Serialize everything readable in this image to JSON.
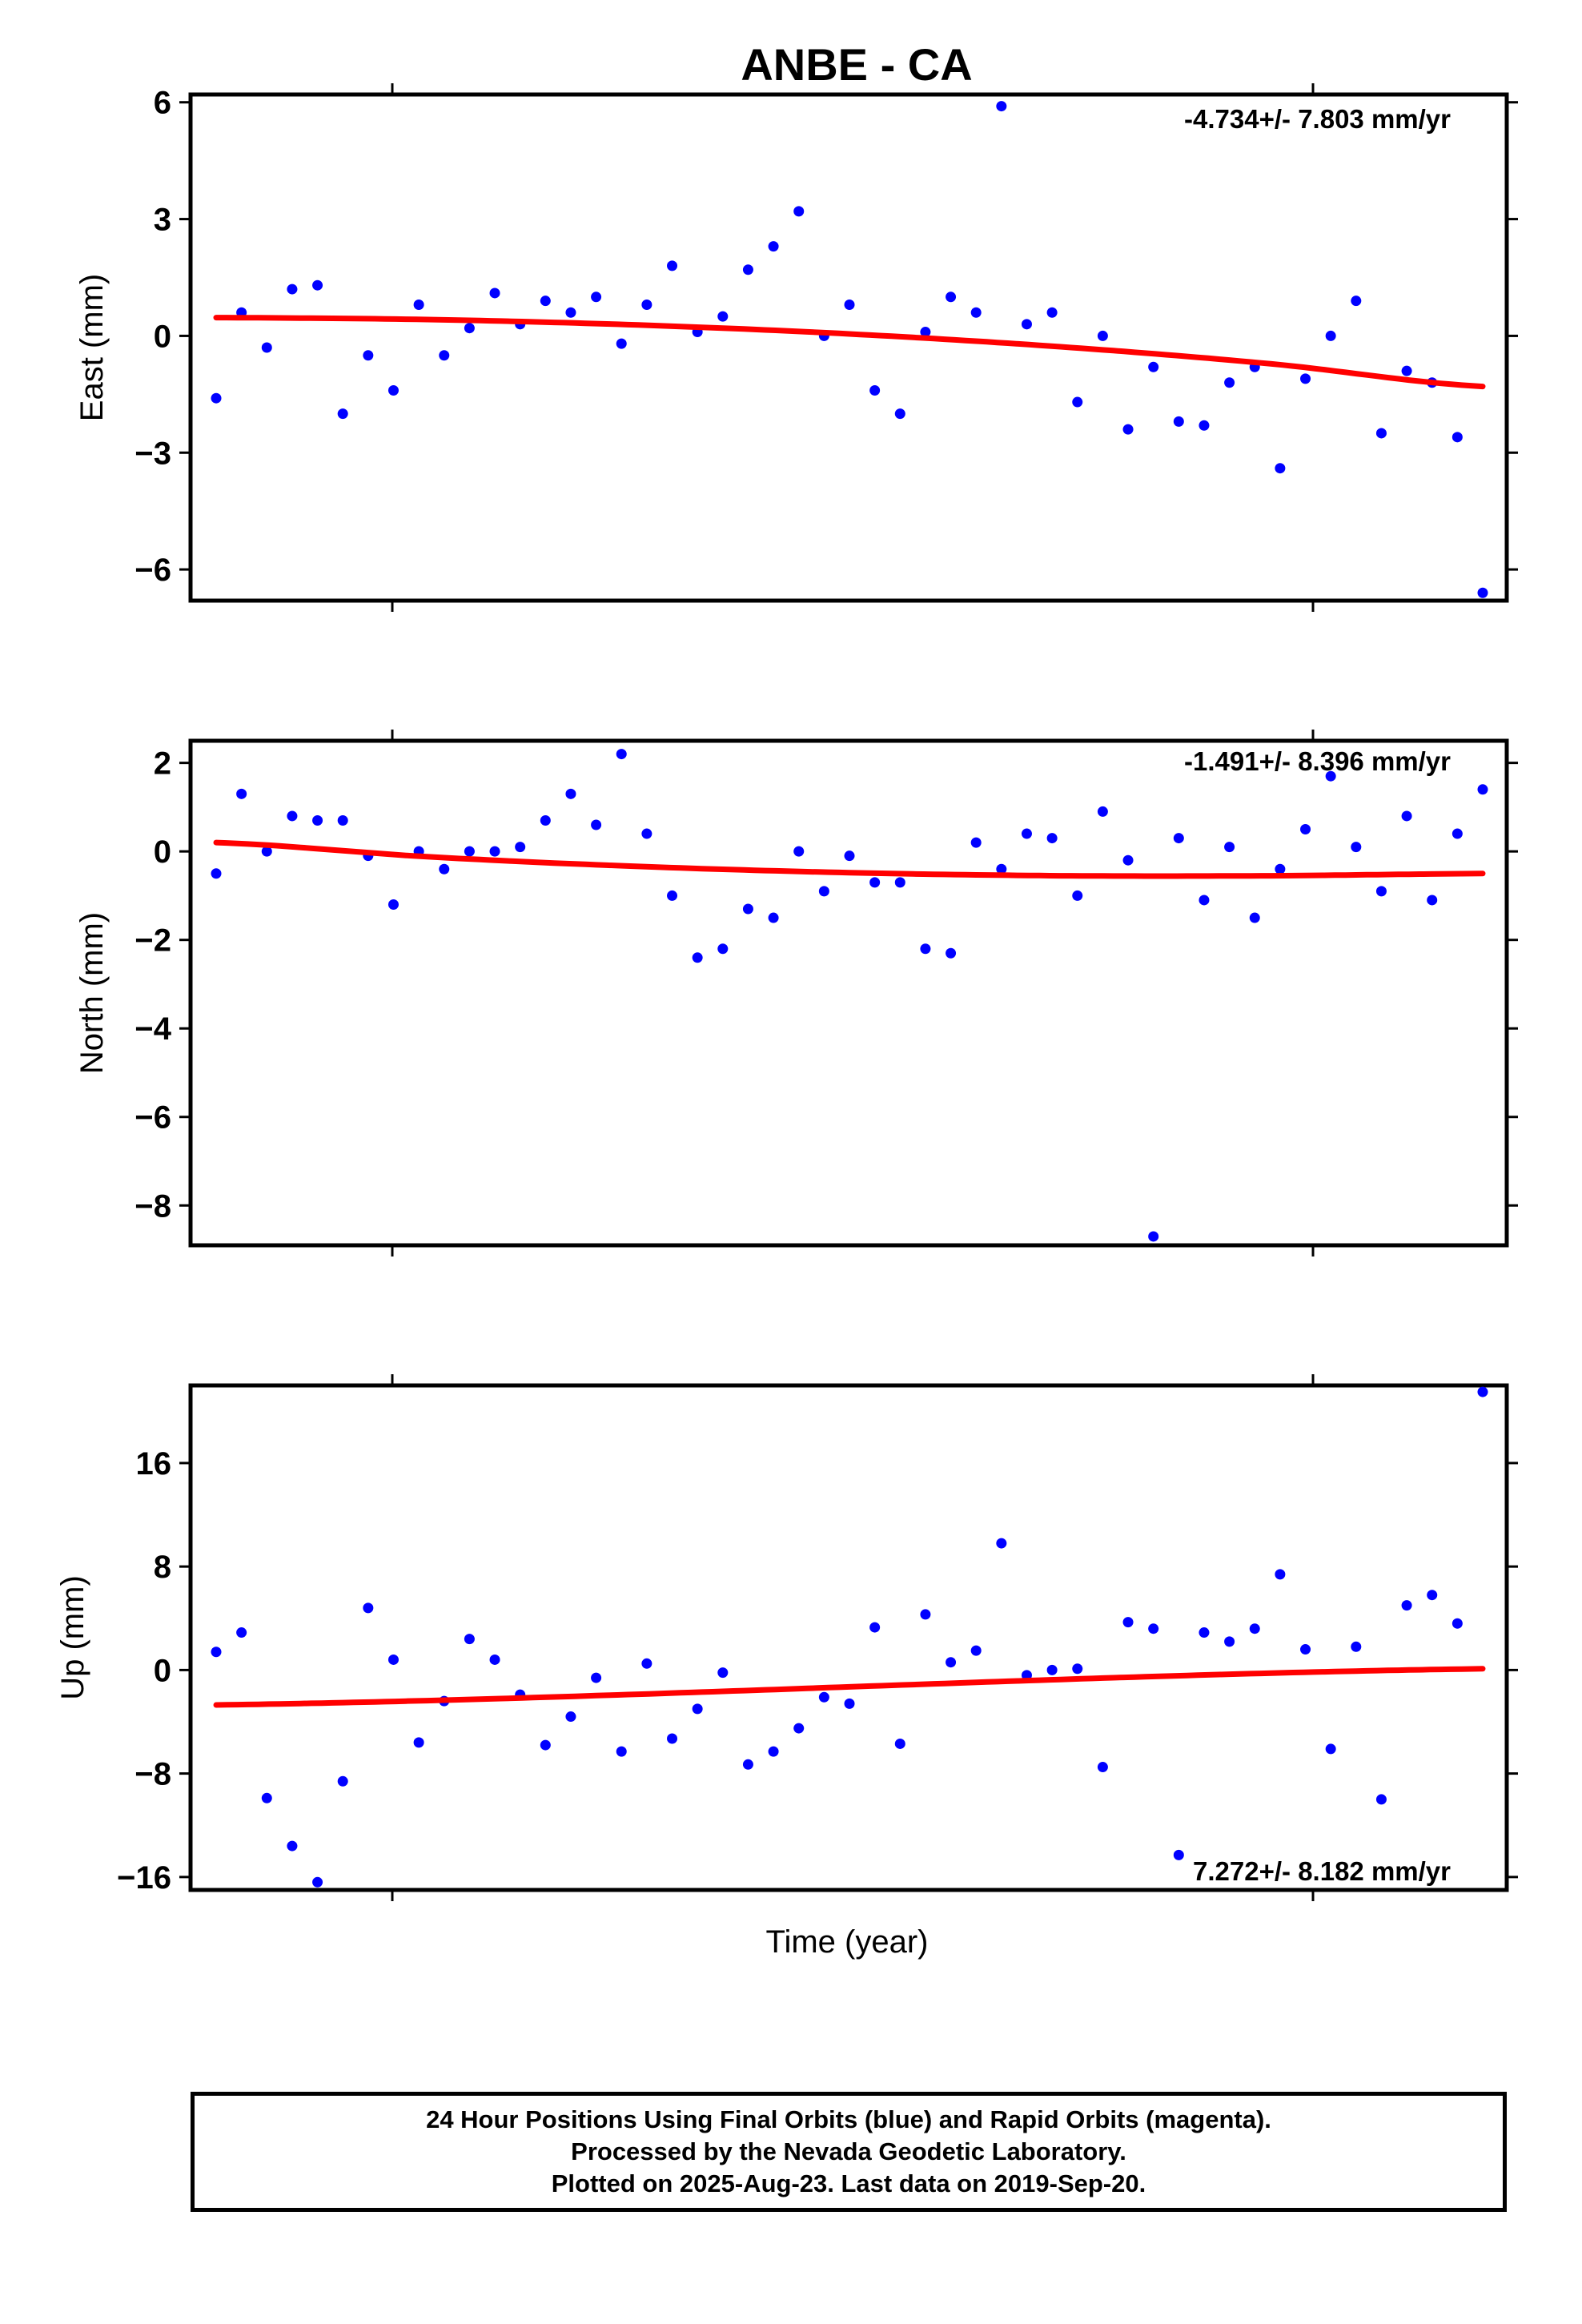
{
  "title": "ANBE - CA",
  "xlabel": "Time (year)",
  "footer": {
    "line1": "24 Hour Positions Using Final Orbits (blue) and Rapid Orbits (magenta).",
    "line2": "Processed by the Nevada Geodetic Laboratory.",
    "line3": "Plotted on 2025-Aug-23. Last data on 2019-Sep-20."
  },
  "colors": {
    "points": "#0000ff",
    "fit": "#ff0000",
    "frame": "#000000"
  },
  "chart_data": [
    {
      "type": "scatter",
      "ylabel": "East (mm)",
      "rate_label": "-4.734+/- 7.803 mm/yr",
      "ylim": [
        -6.8,
        6.2
      ],
      "yticks": [
        6,
        3,
        0,
        -3,
        -6
      ],
      "ytick_labels": [
        "6",
        "3",
        "0",
        "−3",
        "−6"
      ],
      "x": [
        0,
        1,
        2,
        3,
        4,
        5,
        6,
        7,
        8,
        9,
        10,
        11,
        12,
        13,
        14,
        15,
        16,
        17,
        18,
        19,
        20,
        21,
        22,
        23,
        24,
        25,
        26,
        27,
        28,
        29,
        30,
        31,
        32,
        33,
        34,
        35,
        36,
        37,
        38,
        39,
        40,
        41,
        42,
        43,
        44,
        45,
        46,
        47,
        48,
        49,
        50
      ],
      "values": [
        -1.6,
        0.6,
        -0.3,
        1.2,
        1.3,
        -2.0,
        -0.5,
        -1.4,
        0.8,
        -0.5,
        0.2,
        1.1,
        0.3,
        0.9,
        0.6,
        1.0,
        -0.2,
        0.8,
        1.8,
        0.1,
        0.5,
        1.7,
        2.3,
        3.2,
        0.0,
        0.8,
        -1.4,
        -2.0,
        0.1,
        1.0,
        0.6,
        5.9,
        0.3,
        0.6,
        -1.7,
        0.0,
        -2.4,
        -0.8,
        -2.2,
        -2.3,
        -1.2,
        -0.8,
        -3.4,
        -1.1,
        0.0,
        0.9,
        -2.5,
        -0.9,
        -1.2,
        -2.6,
        -6.6
      ],
      "fit": {
        "x": [
          0,
          8.33,
          16.67,
          25,
          33.33,
          41.67,
          50
        ],
        "y": [
          0.47,
          0.42,
          0.28,
          0.05,
          -0.28,
          -0.72,
          -1.3
        ]
      }
    },
    {
      "type": "scatter",
      "ylabel": "North (mm)",
      "rate_label": "-1.491+/- 8.396 mm/yr",
      "ylim": [
        -8.9,
        2.5
      ],
      "yticks": [
        2,
        0,
        -2,
        -4,
        -6,
        -8
      ],
      "ytick_labels": [
        "2",
        "0",
        "−2",
        "−4",
        "−6",
        "−8"
      ],
      "x": [
        0,
        1,
        2,
        3,
        4,
        5,
        6,
        7,
        8,
        9,
        10,
        11,
        12,
        13,
        14,
        15,
        16,
        17,
        18,
        19,
        20,
        21,
        22,
        23,
        24,
        25,
        26,
        27,
        28,
        29,
        30,
        31,
        32,
        33,
        34,
        35,
        36,
        37,
        38,
        39,
        40,
        41,
        42,
        43,
        44,
        45,
        46,
        47,
        48,
        49,
        50
      ],
      "values": [
        -0.5,
        1.3,
        0.0,
        0.8,
        0.7,
        0.7,
        -0.1,
        -1.2,
        0.0,
        -0.4,
        0.0,
        0.0,
        0.1,
        0.7,
        1.3,
        0.6,
        2.2,
        0.4,
        -1.0,
        -2.4,
        -2.2,
        -1.3,
        -1.5,
        0.0,
        -0.9,
        -0.1,
        -0.7,
        -0.7,
        -2.2,
        -2.3,
        0.2,
        -0.4,
        0.4,
        0.3,
        -1.0,
        0.9,
        -0.2,
        -8.7,
        0.3,
        -1.1,
        0.1,
        -1.5,
        -0.4,
        0.5,
        1.7,
        0.1,
        -0.9,
        0.8,
        -1.1,
        0.4,
        1.4
      ],
      "fit": {
        "x": [
          0,
          8.33,
          16.67,
          25,
          33.33,
          41.67,
          50
        ],
        "y": [
          0.2,
          -0.12,
          -0.34,
          -0.48,
          -0.55,
          -0.55,
          -0.5
        ]
      }
    },
    {
      "type": "scatter",
      "ylabel": "Up (mm)",
      "rate_label": "7.272+/- 8.182 mm/yr",
      "ylim": [
        -17,
        22
      ],
      "yticks": [
        16,
        8,
        0,
        -8,
        -16
      ],
      "ytick_labels": [
        "16",
        "8",
        "0",
        "−8",
        "−16"
      ],
      "x": [
        0,
        1,
        2,
        3,
        4,
        5,
        6,
        7,
        8,
        9,
        10,
        11,
        12,
        13,
        14,
        15,
        16,
        17,
        18,
        19,
        20,
        21,
        22,
        23,
        24,
        25,
        26,
        27,
        28,
        29,
        30,
        31,
        32,
        33,
        34,
        35,
        36,
        37,
        38,
        39,
        40,
        41,
        42,
        43,
        44,
        45,
        46,
        47,
        48,
        49,
        50
      ],
      "values": [
        1.4,
        2.9,
        -9.9,
        -13.6,
        -16.4,
        -8.6,
        4.8,
        0.8,
        -5.6,
        -2.4,
        2.4,
        0.8,
        -1.9,
        -5.8,
        -3.6,
        -0.6,
        -6.3,
        0.5,
        -5.3,
        -3.0,
        -0.2,
        -7.3,
        -6.3,
        -4.5,
        -2.1,
        -2.6,
        3.3,
        -5.7,
        4.3,
        0.6,
        1.5,
        9.8,
        -0.4,
        0.0,
        0.1,
        -7.5,
        3.7,
        3.2,
        -14.3,
        2.9,
        2.2,
        3.2,
        7.4,
        1.6,
        -6.1,
        1.8,
        -10.0,
        5.0,
        5.8,
        3.6,
        21.5
      ],
      "fit": {
        "x": [
          0,
          50
        ],
        "y": [
          -2.7,
          0.1
        ]
      }
    }
  ]
}
